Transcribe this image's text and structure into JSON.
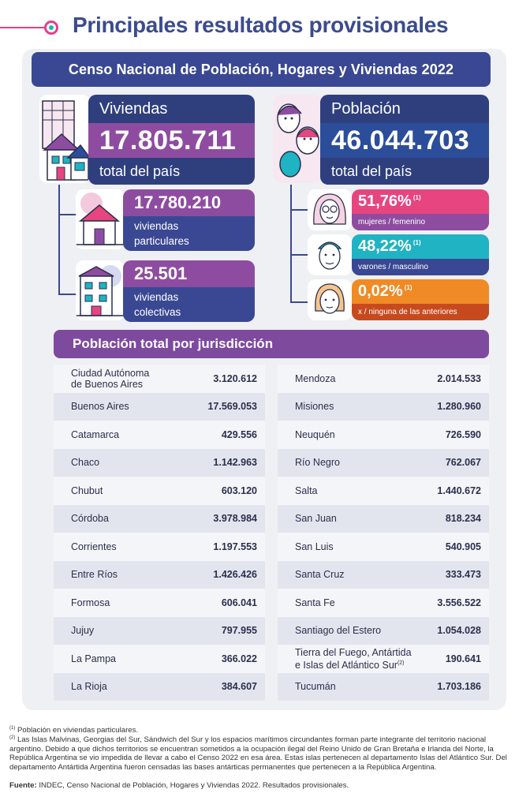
{
  "header": {
    "title": "Principales resultados provisionales"
  },
  "census": {
    "title": "Censo Nacional de Población, Hogares y Viviendas 2022"
  },
  "viviendas": {
    "label": "Viviendas",
    "total": "17.805.711",
    "total_label": "total del país",
    "particulares": {
      "value": "17.780.210",
      "line1": "viviendas",
      "line2": "particulares"
    },
    "colectivas": {
      "value": "25.501",
      "line1": "viviendas",
      "line2": "colectivas"
    }
  },
  "poblacion": {
    "label": "Población",
    "total": "46.044.703",
    "total_label": "total del país",
    "groups": [
      {
        "value": "51,76%",
        "note": "(1)",
        "label": "mujeres / femenino",
        "color": "#e6457f"
      },
      {
        "value": "48,22%",
        "note": "(1)",
        "label": "varones / masculino",
        "color": "#1fb3c3"
      },
      {
        "value": "0,02%",
        "note": "(1)",
        "label": "x / ninguna de las anteriores",
        "color": "#f08a24"
      }
    ]
  },
  "jurisdicciones": {
    "title": "Población total por jurisdicción",
    "left": [
      {
        "name1": "Ciudad Autónoma",
        "name2": "de Buenos Aires",
        "value": "3.120.612"
      },
      {
        "name1": "Buenos Aires",
        "value": "17.569.053"
      },
      {
        "name1": "Catamarca",
        "value": "429.556"
      },
      {
        "name1": "Chaco",
        "value": "1.142.963"
      },
      {
        "name1": "Chubut",
        "value": "603.120"
      },
      {
        "name1": "Córdoba",
        "value": "3.978.984"
      },
      {
        "name1": "Corrientes",
        "value": "1.197.553"
      },
      {
        "name1": "Entre Ríos",
        "value": "1.426.426"
      },
      {
        "name1": "Formosa",
        "value": "606.041"
      },
      {
        "name1": "Jujuy",
        "value": "797.955"
      },
      {
        "name1": "La Pampa",
        "value": "366.022"
      },
      {
        "name1": "La Rioja",
        "value": "384.607"
      }
    ],
    "right": [
      {
        "name1": "Mendoza",
        "value": "2.014.533"
      },
      {
        "name1": "Misiones",
        "value": "1.280.960"
      },
      {
        "name1": "Neuquén",
        "value": "726.590"
      },
      {
        "name1": "Río Negro",
        "value": "762.067"
      },
      {
        "name1": "Salta",
        "value": "1.440.672"
      },
      {
        "name1": "San Juan",
        "value": "818.234"
      },
      {
        "name1": "San Luis",
        "value": "540.905"
      },
      {
        "name1": "Santa Cruz",
        "value": "333.473"
      },
      {
        "name1": "Santa Fe",
        "value": "3.556.522"
      },
      {
        "name1": "Santiago del Estero",
        "value": "1.054.028"
      },
      {
        "name1": "Tierra del Fuego, Antártida",
        "name2": "e Islas del Atlántico Sur",
        "note": "(2)",
        "value": "190.641"
      },
      {
        "name1": "Tucumán",
        "value": "1.703.186"
      }
    ]
  },
  "footnotes": {
    "n1_mark": "(1)",
    "n1": " Población en viviendas particulares.",
    "n2_mark": "(2)",
    "n2": " Las Islas Malvinas, Georgias del Sur, Sándwich del Sur y los espacios marítimos circundantes forman parte integrante del territorio nacional argentino. Debido a que dichos territorios se encuentran sometidos a la ocupación ilegal del Reino Unido de Gran Bretaña e Irlanda del Norte, la República Argentina se vio impedida de llevar a cabo el Censo 2022 en esa área. Estas islas pertenecen al departamento Islas del Atlántico Sur. Del departamento Antártida Argentina fueron censadas las bases antárticas permanentes que pertenecen a la República Argentina.",
    "source_label": "Fuente:",
    "source": " INDEC, Censo Nacional de Población, Hogares y Viviendas 2022. Resultados provisionales."
  },
  "colors": {
    "navy": "#3a4893",
    "purple": "#8e4ca0",
    "pink": "#e6457f",
    "teal": "#1fb3c3",
    "orange": "#f08a24"
  }
}
